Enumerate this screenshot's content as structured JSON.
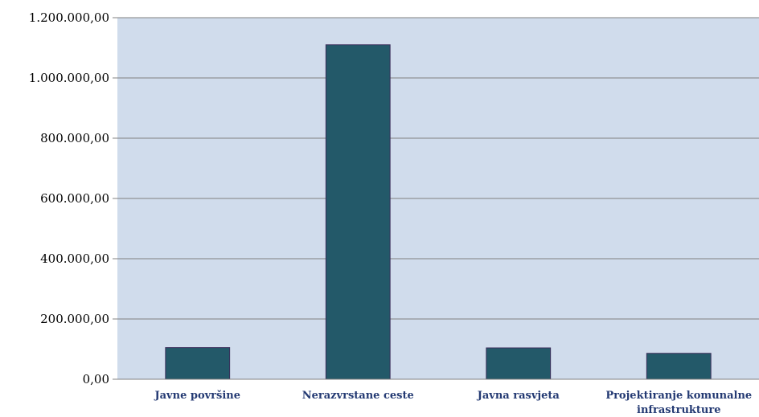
{
  "chart_data": {
    "type": "bar",
    "categories": [
      [
        "Javne površine"
      ],
      [
        "Nerazvrstane ceste"
      ],
      [
        "Javna rasvjeta"
      ],
      [
        "Projektiranje komunalne",
        "infrastrukture"
      ]
    ],
    "values": [
      105000,
      1110000,
      104000,
      86000
    ],
    "ylim": [
      0,
      1200000
    ],
    "yticks": [
      0,
      200000,
      400000,
      600000,
      800000,
      1000000,
      1200000
    ],
    "ytick_labels": [
      "0,00",
      "200.000,00",
      "400.000,00",
      "600.000,00",
      "800.000,00",
      "1.000.000,00",
      "1.200.000,00"
    ],
    "grid": true,
    "colors": {
      "plot_background": "#D0DCEC",
      "bar_fill": "#235969",
      "bar_stroke": "#3A2D5A",
      "gridline": "#808080",
      "category_text": "#243A73"
    }
  }
}
